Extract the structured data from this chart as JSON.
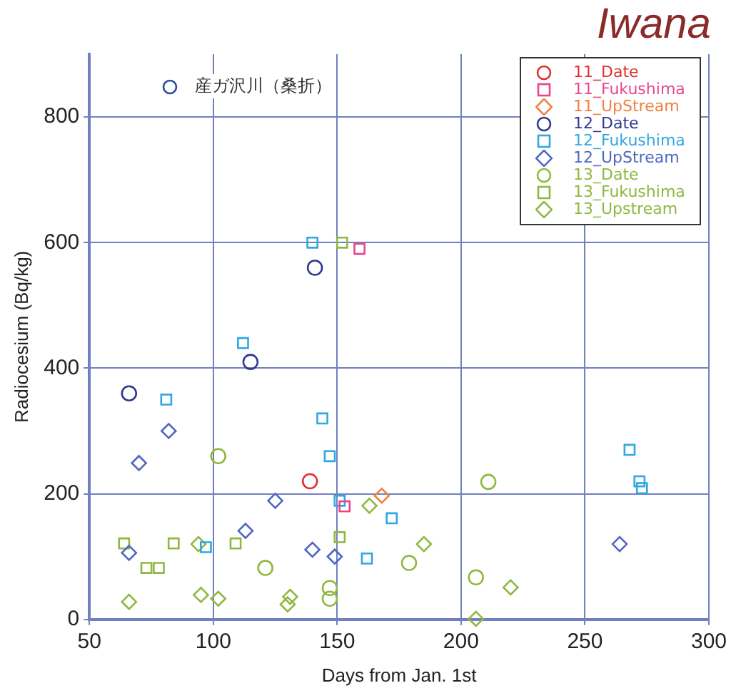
{
  "chart_data": {
    "type": "scatter",
    "title": "Iwana",
    "xlabel": "Days from Jan. 1st",
    "ylabel": "Radiocesium (Bq/kg)",
    "annotations": [
      "産ガ沢川（桑折）"
    ],
    "xlim": [
      50,
      300
    ],
    "xticks": [
      50,
      100,
      150,
      200,
      250,
      300
    ],
    "ylim": [
      0,
      900
    ],
    "yticks": [
      0,
      200,
      400,
      600,
      800
    ],
    "grid": true,
    "legend": "top right",
    "series": [
      {
        "name": "11_Date",
        "color": "#e03030",
        "marker": "circle",
        "x": [
          139
        ],
        "values": [
          220
        ]
      },
      {
        "name": "11_Fukushima",
        "color": "#e8488a",
        "marker": "square",
        "x": [
          159,
          153
        ],
        "values": [
          590,
          180
        ]
      },
      {
        "name": "11_UpStream",
        "color": "#f08040",
        "marker": "diamond",
        "x": [
          168
        ],
        "values": [
          197
        ]
      },
      {
        "name": "12_Date",
        "color": "#303890",
        "marker": "circle",
        "x": [
          66,
          115,
          141
        ],
        "values": [
          360,
          410,
          560
        ]
      },
      {
        "name": "12_Fukushima",
        "color": "#30a8e0",
        "marker": "square",
        "x": [
          112,
          140,
          81,
          97,
          144,
          147,
          151,
          172,
          162,
          268,
          272,
          273
        ],
        "values": [
          440,
          600,
          350,
          115,
          320,
          260,
          189,
          161,
          97,
          270,
          220,
          209
        ]
      },
      {
        "name": "12_UpStream",
        "color": "#5068c0",
        "marker": "diamond",
        "x": [
          82,
          70,
          66,
          113,
          125,
          140,
          149,
          264
        ],
        "values": [
          300,
          249,
          106,
          141,
          189,
          111,
          100,
          120
        ]
      },
      {
        "name": "13_Date",
        "color": "#90b840",
        "marker": "circle",
        "x": [
          102,
          121,
          147,
          147,
          179,
          211,
          206
        ],
        "values": [
          260,
          82,
          50,
          33,
          90,
          219,
          67
        ]
      },
      {
        "name": "13_Fukushima",
        "color": "#90b840",
        "marker": "square",
        "x": [
          64,
          73,
          78,
          84,
          109,
          152,
          151
        ],
        "values": [
          121,
          82,
          82,
          121,
          121,
          600,
          131
        ]
      },
      {
        "name": "13_Upstream",
        "color": "#90b840",
        "marker": "diamond",
        "x": [
          66,
          95,
          102,
          94,
          131,
          130,
          163,
          185,
          220,
          206
        ],
        "values": [
          28,
          39,
          33,
          120,
          36,
          24,
          181,
          120,
          51,
          1
        ]
      }
    ]
  }
}
